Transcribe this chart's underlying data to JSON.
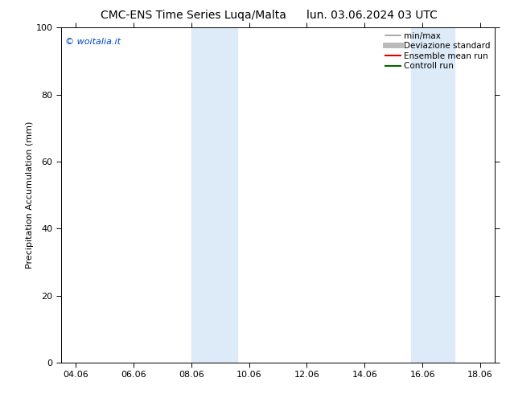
{
  "title_left": "CMC-ENS Time Series Luqa/Malta",
  "title_right": "lun. 03.06.2024 03 UTC",
  "ylabel": "Precipitation Accumulation (mm)",
  "xlim_left": 3.5,
  "xlim_right": 18.5,
  "ylim_bottom": 0,
  "ylim_top": 100,
  "yticks": [
    0,
    20,
    40,
    60,
    80,
    100
  ],
  "xtick_labels": [
    "04.06",
    "06.06",
    "08.06",
    "10.06",
    "12.06",
    "14.06",
    "16.06",
    "18.06"
  ],
  "xtick_positions": [
    4,
    6,
    8,
    10,
    12,
    14,
    16,
    18
  ],
  "shaded_bands": [
    {
      "xmin": 8.0,
      "xmax": 9.6
    },
    {
      "xmin": 15.6,
      "xmax": 17.1
    }
  ],
  "shade_color": "#ddeaf7",
  "background_color": "#ffffff",
  "watermark_text": "© woitalia.it",
  "watermark_color": "#0044bb",
  "legend_entries": [
    {
      "label": "min/max",
      "color": "#999999",
      "lw": 1.2,
      "style": "-"
    },
    {
      "label": "Deviazione standard",
      "color": "#bbbbbb",
      "lw": 5,
      "style": "-"
    },
    {
      "label": "Ensemble mean run",
      "color": "#dd0000",
      "lw": 1.5,
      "style": "-"
    },
    {
      "label": "Controll run",
      "color": "#006600",
      "lw": 1.5,
      "style": "-"
    }
  ],
  "title_fontsize": 10,
  "tick_fontsize": 8,
  "ylabel_fontsize": 8,
  "legend_fontsize": 7.5,
  "watermark_fontsize": 8
}
